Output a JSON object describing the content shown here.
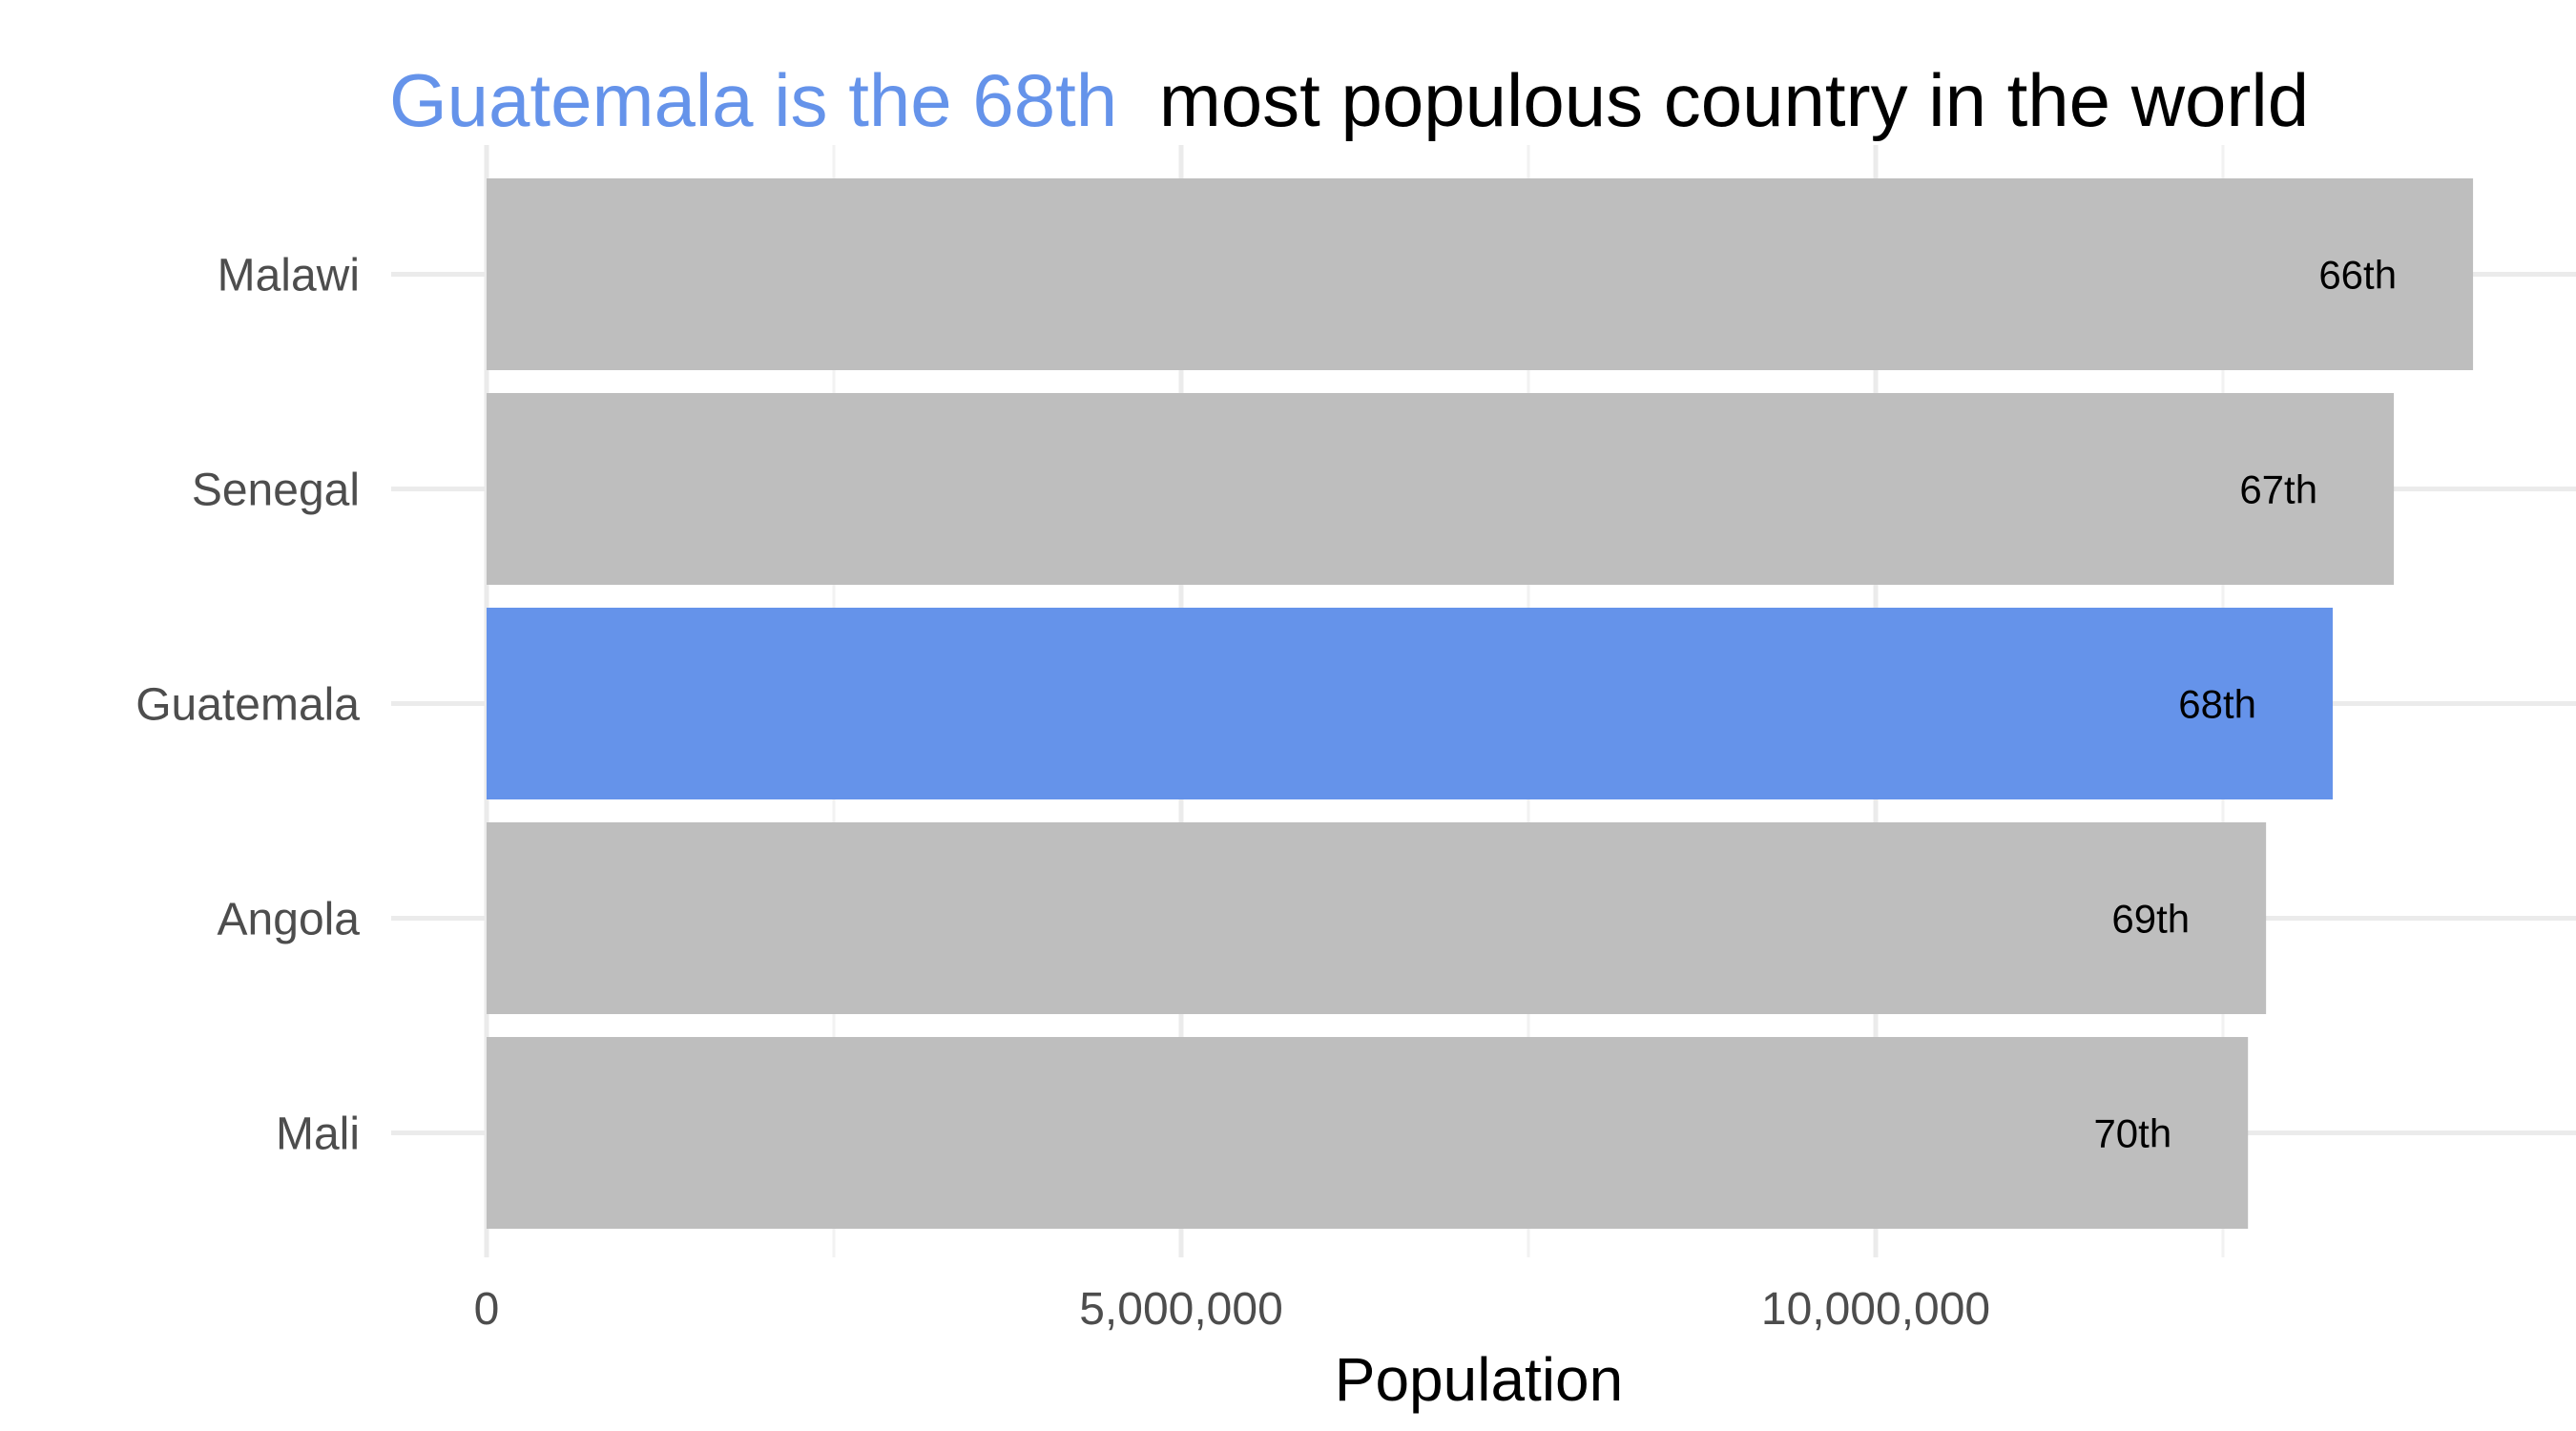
{
  "chart_data": {
    "type": "bar",
    "orientation": "horizontal",
    "title_parts": [
      {
        "text": "Guatemala is the 68th",
        "color": "#6593ea"
      },
      {
        "text": "most populous country in the world",
        "color": "#000000"
      }
    ],
    "categories": [
      "Malawi",
      "Senegal",
      "Guatemala",
      "Angola",
      "Mali"
    ],
    "values": [
      14300000,
      13730000,
      13290000,
      12810000,
      12680000
    ],
    "labels": [
      "66th",
      "67th",
      "68th",
      "69th",
      "70th"
    ],
    "highlight": "Guatemala",
    "xlabel": "Population",
    "ylabel": "",
    "xlim": [
      0,
      15000000
    ],
    "xticks": [
      0,
      5000000,
      10000000
    ],
    "xtick_labels": [
      "0",
      "5,000,000",
      "10,000,000"
    ],
    "colors": {
      "highlight": "#6593ea",
      "default": "#bebebe"
    },
    "grid": true,
    "legend": "none"
  }
}
